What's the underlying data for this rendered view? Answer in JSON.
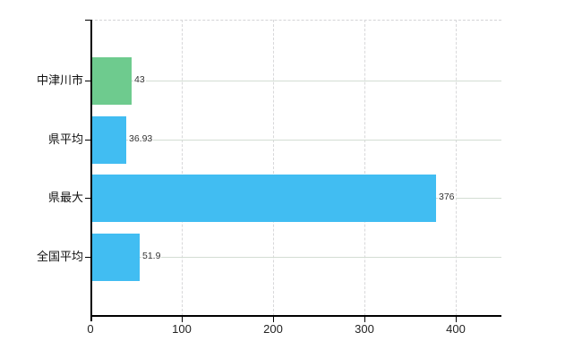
{
  "chart_data": {
    "type": "bar",
    "orientation": "horizontal",
    "title": "",
    "xlabel": "",
    "ylabel": "",
    "categories": [
      "中津川市",
      "県平均",
      "県最大",
      "全国平均"
    ],
    "values": [
      43,
      36.93,
      376,
      51.9
    ],
    "data_labels": [
      "43",
      "36.93",
      "376",
      "51.9"
    ],
    "bar_colors": [
      "#6ecb8e",
      "#41bdf2",
      "#41bdf2",
      "#41bdf2"
    ],
    "x_tick_labels": [
      "0",
      "100",
      "200",
      "300",
      "400"
    ],
    "x_tick_values": [
      0,
      100,
      200,
      300,
      400
    ],
    "xlim": [
      0,
      450
    ],
    "grid": "on",
    "legend": "none"
  },
  "colors": {
    "highlight_bar": "#6ecb8e",
    "default_bar": "#41bdf2",
    "axis": "#000000",
    "gridline_vertical": "#d8d8da",
    "gridline_horizontal": "#d3ddd3",
    "background": "#ffffff",
    "text": "#222222"
  }
}
